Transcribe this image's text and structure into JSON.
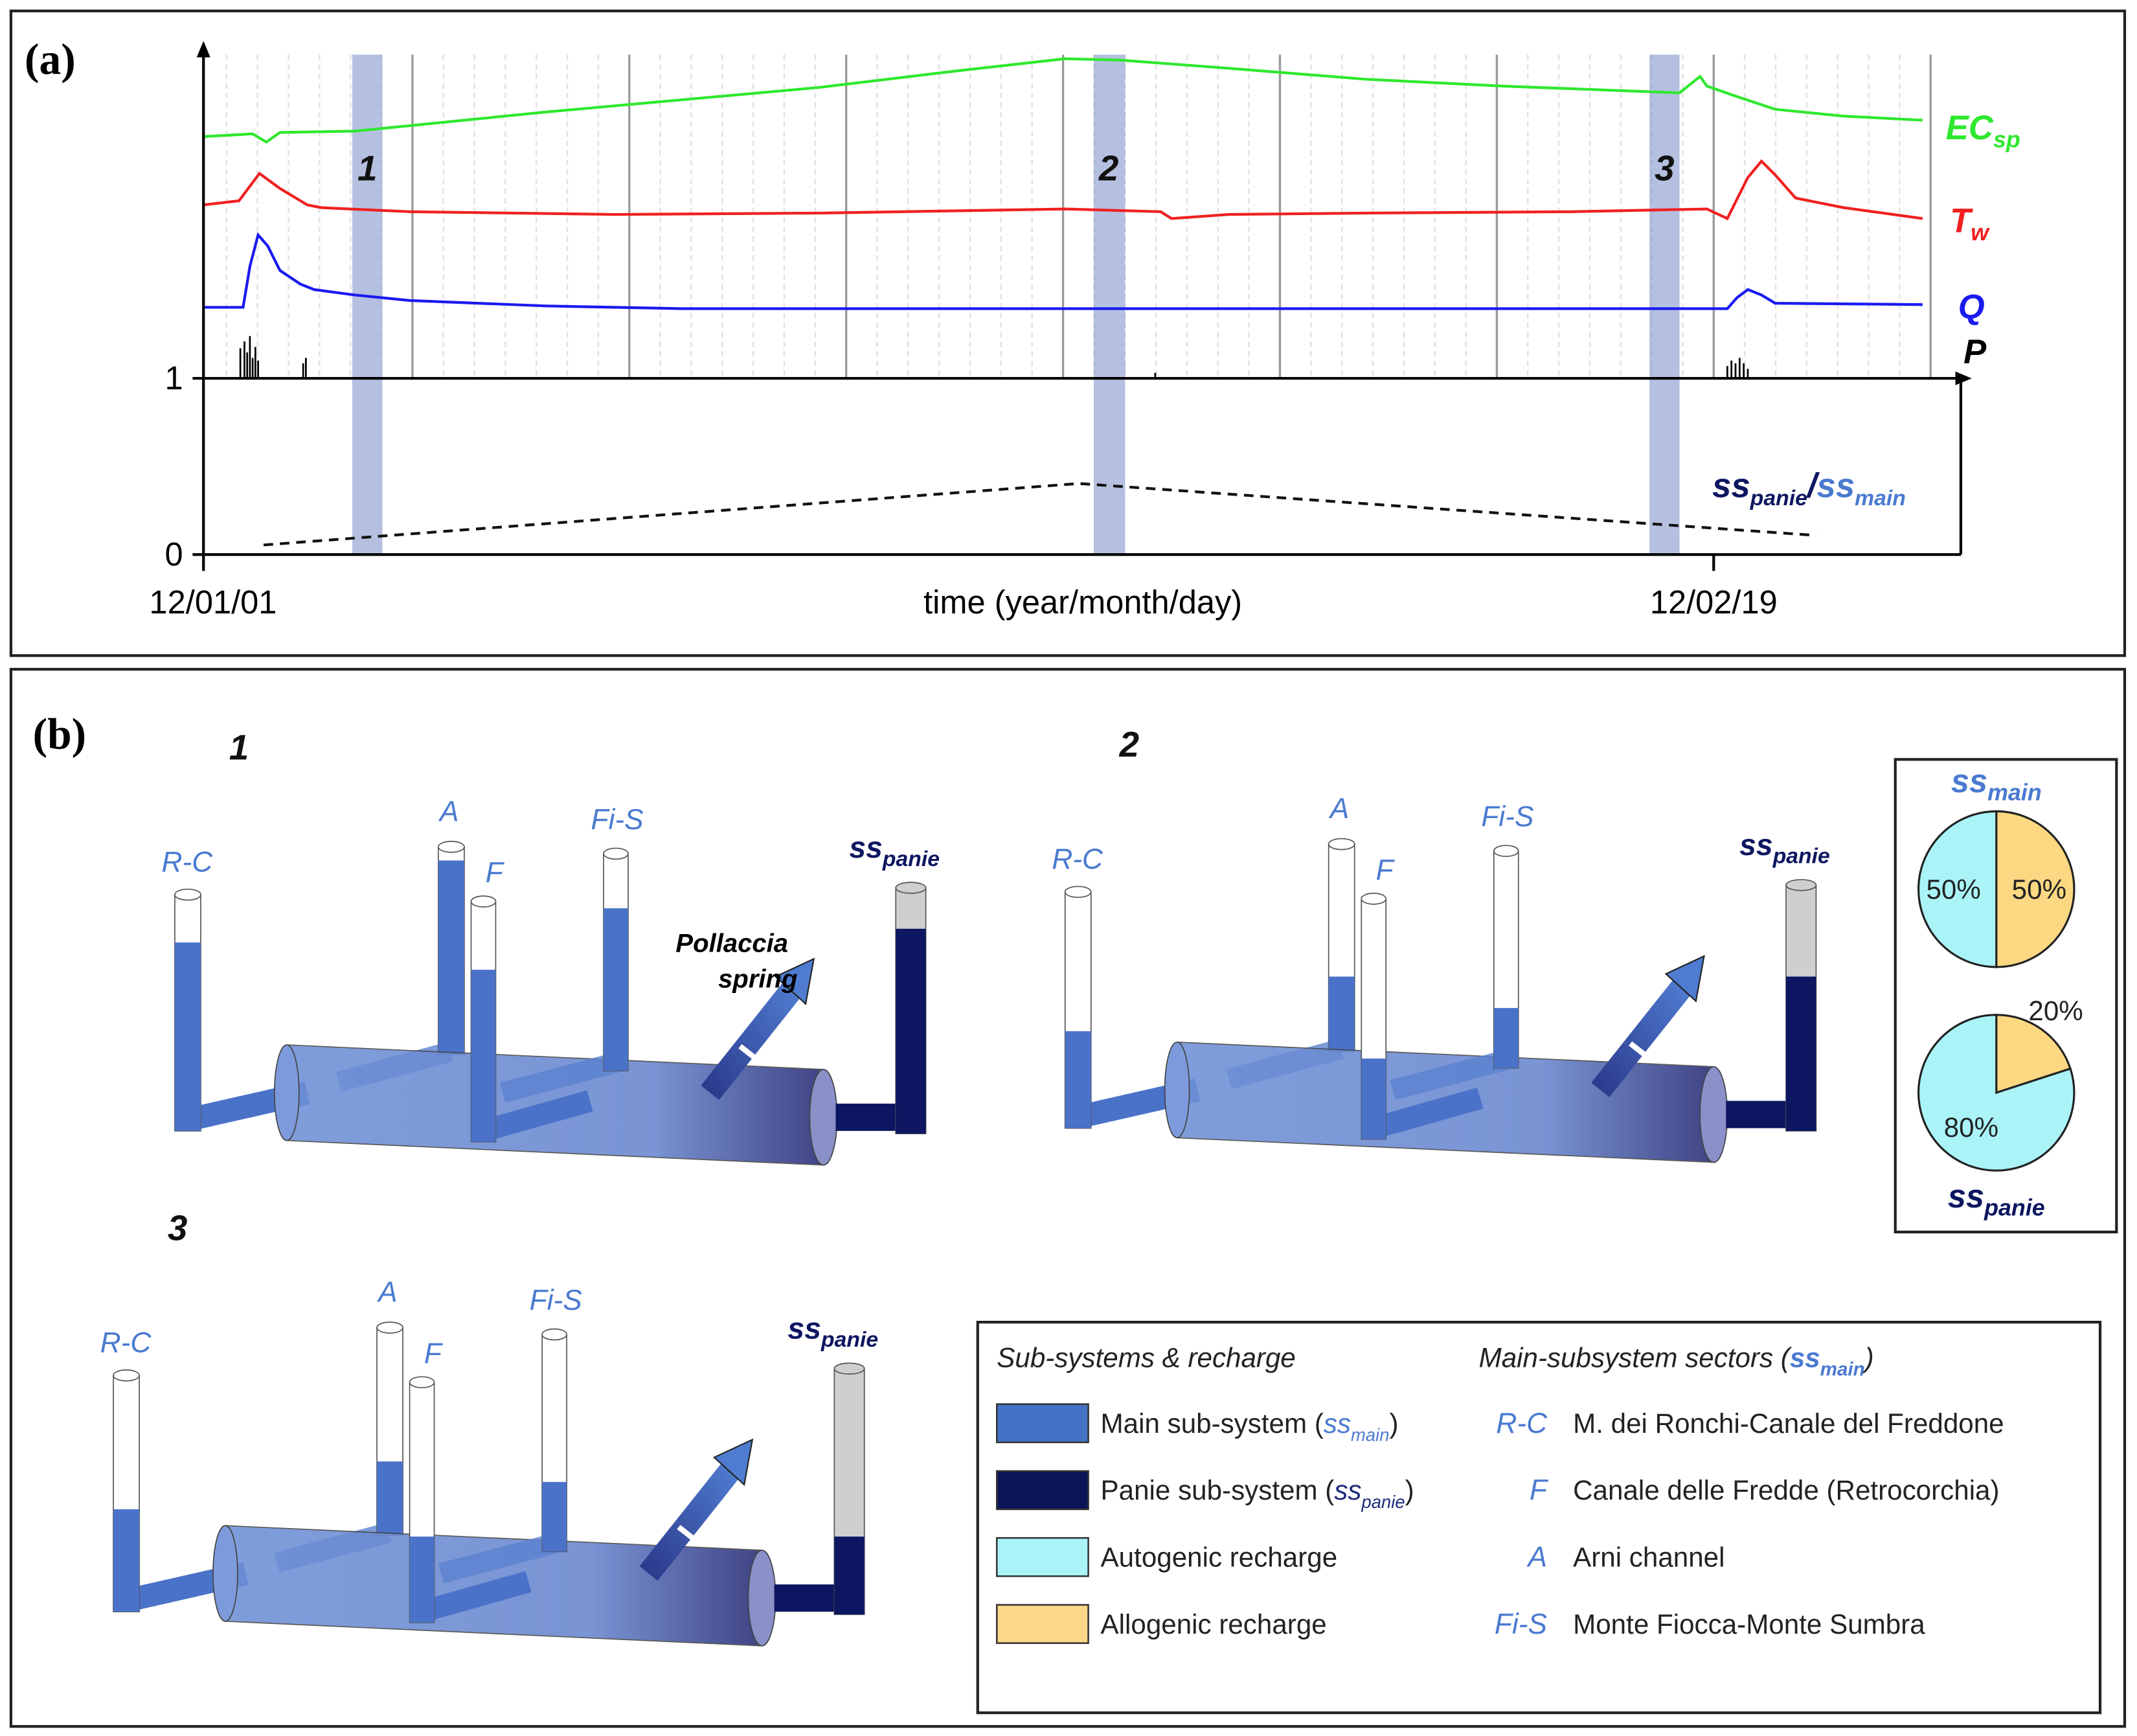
{
  "panel_a": {
    "label": "(a)",
    "yticks": [
      1,
      0
    ],
    "periods": [
      "1",
      "2",
      "3"
    ],
    "xlabels": {
      "start": "12/01/01",
      "title": "time (year/month/day)",
      "end": "12/02/19"
    },
    "series_labels": {
      "ec": {
        "main": "EC",
        "sub": "sp"
      },
      "tw": {
        "main": "T",
        "sub": "w"
      },
      "q": "Q",
      "p": "P"
    },
    "ratio_label": {
      "num": "ss",
      "num_sub": "panie",
      "sep": "/",
      "den": "ss",
      "den_sub": "main"
    }
  },
  "panel_b": {
    "label": "(b)",
    "diagrams": [
      {
        "number": "1",
        "sectors": [
          "R-C",
          "A",
          "F",
          "Fi-S"
        ],
        "outlet": {
          "main": "ss",
          "sub": "panie"
        },
        "spring": [
          "Pollaccia",
          "spring"
        ]
      },
      {
        "number": "2",
        "sectors": [
          "R-C",
          "A",
          "F",
          "Fi-S"
        ],
        "outlet": {
          "main": "ss",
          "sub": "panie"
        }
      },
      {
        "number": "3",
        "sectors": [
          "R-C",
          "A",
          "F",
          "Fi-S"
        ],
        "outlet": {
          "main": "ss",
          "sub": "panie"
        }
      }
    ],
    "pies": [
      {
        "title": {
          "main": "ss",
          "sub": "main"
        },
        "values": [
          50,
          50
        ],
        "value_labels": [
          "50%",
          "50%"
        ]
      },
      {
        "title": {
          "main": "ss",
          "sub": "panie"
        },
        "values": [
          20,
          80
        ],
        "value_labels": [
          "20%",
          "80%"
        ]
      }
    ],
    "legend": {
      "headers": [
        "Sub-systems & recharge",
        {
          "pre": "Main-subsystem sectors (",
          "main": "ss",
          "sub": "main",
          "post": ")"
        }
      ],
      "items": [
        {
          "pre": "Main sub-system (",
          "main": "ss",
          "sub": "main",
          "post": ")"
        },
        {
          "pre": "Panie sub-system (",
          "main": "ss",
          "sub": "panie",
          "post": ")"
        },
        {
          "pre": "Autogenic recharge"
        },
        {
          "pre": "Allogenic recharge"
        }
      ],
      "sectors": [
        {
          "code": "R-C",
          "name": "M. dei Ronchi-Canale del Freddone"
        },
        {
          "code": "F",
          "name": "Canale delle Fredde (Retrocorchia)"
        },
        {
          "code": "A",
          "name": "Arni channel"
        },
        {
          "code": "Fi-S",
          "name": "Monte Fiocca-Monte Sumbra"
        }
      ]
    }
  }
}
